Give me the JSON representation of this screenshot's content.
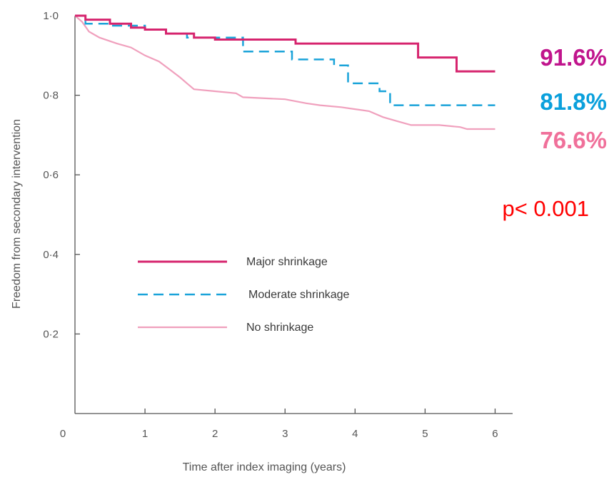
{
  "chart_data": {
    "type": "line",
    "title": "",
    "xlabel": "Time after index imaging (years)",
    "ylabel": "Freedom from secondary intervention",
    "xlim": [
      0,
      6.25
    ],
    "ylim": [
      0,
      1.0
    ],
    "x_ticks": [
      0,
      1,
      2,
      3,
      4,
      5,
      6
    ],
    "x_tick_labels": [
      "0",
      "1",
      "2",
      "3",
      "4",
      "5",
      "6"
    ],
    "y_ticks": [
      0.2,
      0.4,
      0.6,
      0.8,
      1.0
    ],
    "y_tick_labels": [
      "0·2",
      "0·4",
      "0·6",
      "0·8",
      "1·0"
    ],
    "grid": false,
    "legend_position": "center-left",
    "series": [
      {
        "name": "Major shrinkage",
        "color": "#d6246e",
        "style": "solid",
        "points": [
          [
            0,
            1.0
          ],
          [
            0.15,
            1.0
          ],
          [
            0.15,
            0.99
          ],
          [
            0.5,
            0.99
          ],
          [
            0.5,
            0.98
          ],
          [
            0.8,
            0.98
          ],
          [
            0.8,
            0.97
          ],
          [
            1.0,
            0.97
          ],
          [
            1.0,
            0.965
          ],
          [
            1.3,
            0.965
          ],
          [
            1.3,
            0.955
          ],
          [
            1.7,
            0.955
          ],
          [
            1.7,
            0.945
          ],
          [
            2.0,
            0.945
          ],
          [
            2.0,
            0.94
          ],
          [
            3.15,
            0.94
          ],
          [
            3.15,
            0.93
          ],
          [
            4.9,
            0.93
          ],
          [
            4.9,
            0.895
          ],
          [
            5.45,
            0.895
          ],
          [
            5.45,
            0.86
          ],
          [
            6.0,
            0.86
          ]
        ]
      },
      {
        "name": "Moderate shrinkage",
        "color": "#1aa3d9",
        "style": "dashed",
        "points": [
          [
            0,
            1.0
          ],
          [
            0.15,
            1.0
          ],
          [
            0.15,
            0.98
          ],
          [
            0.5,
            0.98
          ],
          [
            0.5,
            0.975
          ],
          [
            1.0,
            0.975
          ],
          [
            1.0,
            0.965
          ],
          [
            1.3,
            0.965
          ],
          [
            1.3,
            0.955
          ],
          [
            1.6,
            0.955
          ],
          [
            1.6,
            0.945
          ],
          [
            2.4,
            0.945
          ],
          [
            2.4,
            0.91
          ],
          [
            3.1,
            0.91
          ],
          [
            3.1,
            0.89
          ],
          [
            3.7,
            0.89
          ],
          [
            3.7,
            0.875
          ],
          [
            3.9,
            0.875
          ],
          [
            3.9,
            0.83
          ],
          [
            4.35,
            0.83
          ],
          [
            4.35,
            0.81
          ],
          [
            4.5,
            0.81
          ],
          [
            4.5,
            0.775
          ],
          [
            6.0,
            0.775
          ]
        ]
      },
      {
        "name": "No shrinkage",
        "color": "#f0a0bd",
        "style": "solid",
        "points": [
          [
            0,
            1.0
          ],
          [
            0.1,
            0.985
          ],
          [
            0.2,
            0.96
          ],
          [
            0.35,
            0.945
          ],
          [
            0.6,
            0.93
          ],
          [
            0.8,
            0.92
          ],
          [
            1.0,
            0.9
          ],
          [
            1.2,
            0.885
          ],
          [
            1.35,
            0.865
          ],
          [
            1.5,
            0.845
          ],
          [
            1.6,
            0.83
          ],
          [
            1.7,
            0.815
          ],
          [
            2.0,
            0.81
          ],
          [
            2.3,
            0.805
          ],
          [
            2.4,
            0.795
          ],
          [
            3.0,
            0.79
          ],
          [
            3.3,
            0.78
          ],
          [
            3.5,
            0.775
          ],
          [
            3.8,
            0.77
          ],
          [
            4.0,
            0.765
          ],
          [
            4.2,
            0.76
          ],
          [
            4.4,
            0.745
          ],
          [
            4.6,
            0.735
          ],
          [
            4.8,
            0.725
          ],
          [
            5.2,
            0.725
          ],
          [
            5.5,
            0.72
          ],
          [
            5.6,
            0.715
          ],
          [
            6.0,
            0.715
          ]
        ]
      }
    ]
  },
  "annotations": {
    "major_pct": {
      "text": "91.6%",
      "color": "#c0148c"
    },
    "moderate_pct": {
      "text": "81.8%",
      "color": "#0aa0dc"
    },
    "none_pct": {
      "text": "76.6%",
      "color": "#f0709a"
    },
    "p_value": {
      "text": "p< 0.001",
      "color": "#ff0000"
    }
  }
}
